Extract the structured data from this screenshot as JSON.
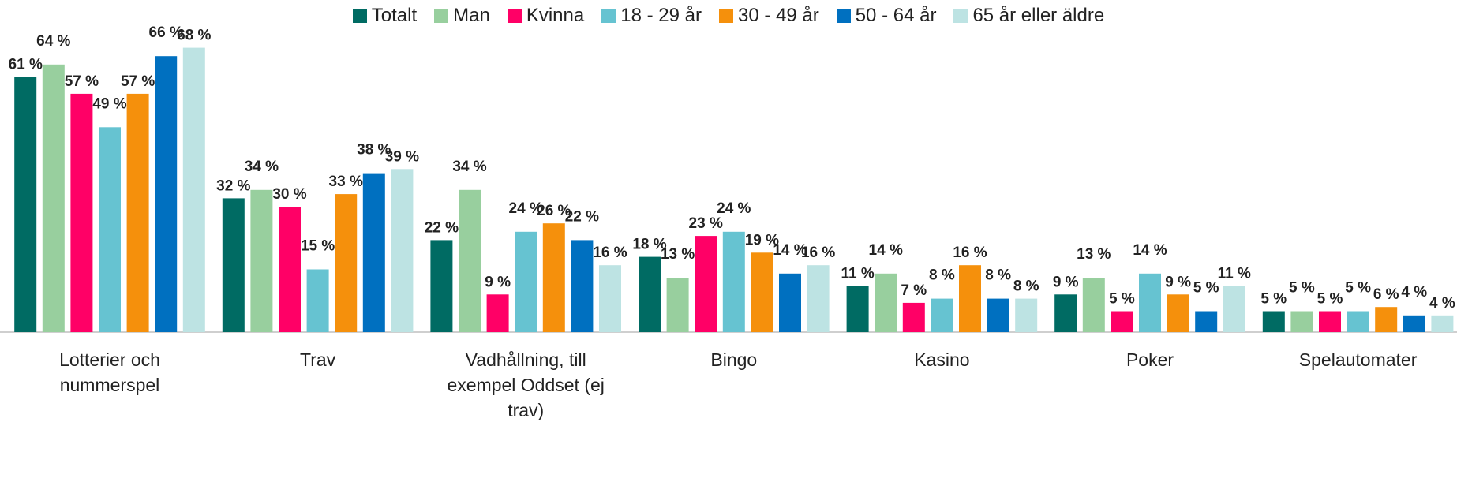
{
  "chart_data": {
    "type": "bar",
    "categories": [
      "Lotterier och nummerspel",
      "Trav",
      "Vadhållning, till exempel Oddset (ej trav)",
      "Bingo",
      "Kasino",
      "Poker",
      "Spelautomater"
    ],
    "series": [
      {
        "name": "Totalt",
        "color": "#006b63",
        "values": [
          61,
          32,
          22,
          18,
          11,
          9,
          5
        ],
        "value_labels": [
          "61 %",
          "32 %",
          "22 %",
          "18 %",
          "11 %",
          "9 %",
          "5 %"
        ]
      },
      {
        "name": "Man",
        "color": "#98cf9e",
        "values": [
          64,
          34,
          34,
          13,
          14,
          13,
          5
        ],
        "value_labels": [
          "64 %",
          "34 %",
          "34 %",
          "13 %",
          "14 %",
          "13 %",
          "5 %"
        ]
      },
      {
        "name": "Kvinna",
        "color": "#ff0066",
        "values": [
          57,
          30,
          9,
          23,
          7,
          5,
          5
        ],
        "value_labels": [
          "57 %",
          "30 %",
          "9 %",
          "23 %",
          "7 %",
          "5 %",
          "5 %"
        ]
      },
      {
        "name": "18 - 29 år",
        "color": "#66c3d1",
        "values": [
          49,
          15,
          24,
          24,
          8,
          14,
          5
        ],
        "value_labels": [
          "49 %",
          "15 %",
          "24 %",
          "24 %",
          "8 %",
          "14 %",
          "5 %"
        ]
      },
      {
        "name": "30 - 49 år",
        "color": "#f5900c",
        "values": [
          57,
          33,
          26,
          19,
          16,
          9,
          6
        ],
        "value_labels": [
          "57 %",
          "33 %",
          "26 %",
          "19 %",
          "16 %",
          "9 %",
          "6 %"
        ]
      },
      {
        "name": "50 - 64 år",
        "color": "#0070c0",
        "values": [
          66,
          38,
          22,
          14,
          8,
          5,
          4
        ],
        "value_labels": [
          "66 %",
          "38 %",
          "22 %",
          "14 %",
          "8 %",
          "5 %",
          "4 %"
        ]
      },
      {
        "name": "65 år eller äldre",
        "color": "#bde3e3",
        "values": [
          68,
          39,
          16,
          16,
          8,
          11,
          4
        ],
        "value_labels": [
          "68 %",
          "39 %",
          "16 %",
          "16 %",
          "8 %",
          "11 %",
          "4 %"
        ]
      }
    ]
  }
}
